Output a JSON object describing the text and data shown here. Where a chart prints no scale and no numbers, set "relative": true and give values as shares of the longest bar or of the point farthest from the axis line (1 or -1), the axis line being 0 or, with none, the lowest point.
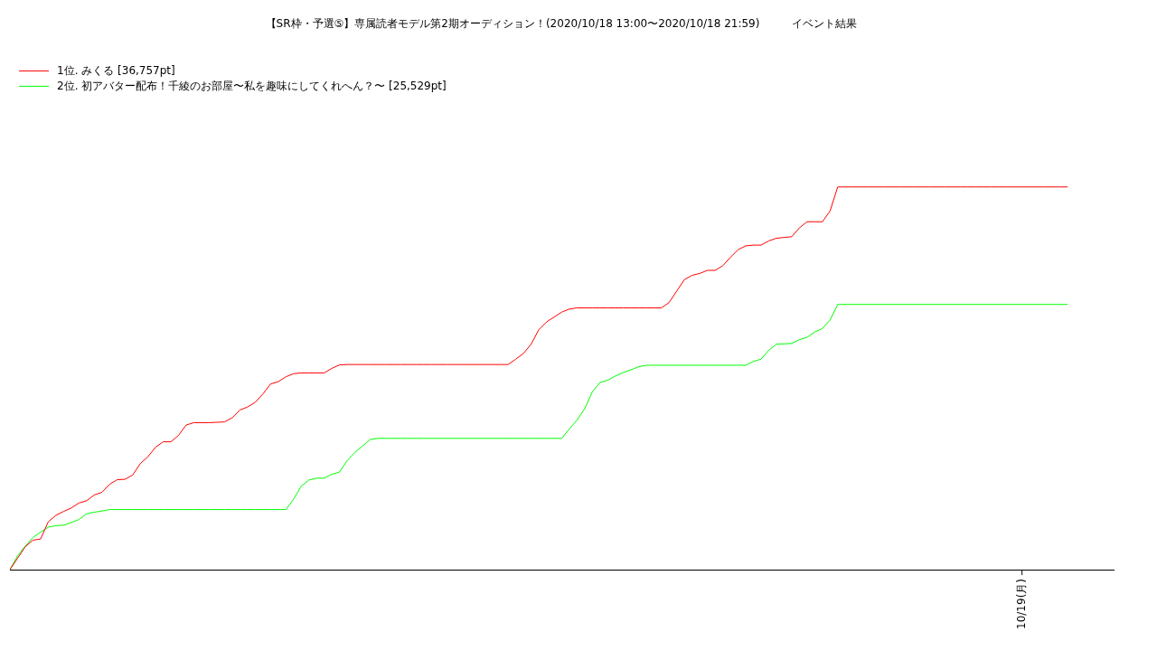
{
  "chart_data": {
    "type": "line",
    "title": "【SR枠・予選⑤】専属読者モデル第2期オーディション！(2020/10/18 13:00〜2020/10/18 21:59)　　　イベント結果",
    "relative": true,
    "categories": [
      null,
      null,
      null,
      null,
      null,
      null,
      null,
      null,
      null,
      null,
      null,
      null,
      null,
      null,
      null,
      null,
      null,
      null,
      null,
      null,
      null,
      null,
      null,
      null,
      null,
      null,
      null,
      null,
      null,
      null,
      null,
      null,
      null,
      null,
      null,
      null,
      null,
      null,
      null,
      null,
      null,
      null,
      null,
      null,
      null,
      null,
      null,
      null,
      null,
      null,
      null,
      null,
      null,
      null,
      null,
      null,
      null,
      null,
      null,
      null,
      null,
      null,
      null,
      null,
      null,
      null,
      null,
      null,
      null,
      null,
      null,
      null,
      null,
      null,
      null,
      null,
      null,
      null,
      null,
      null,
      null,
      null,
      null,
      null,
      null,
      null,
      null,
      null,
      null,
      null,
      null,
      null,
      null,
      null,
      null,
      null,
      null,
      null,
      null,
      null,
      null,
      null,
      null,
      null,
      null,
      null,
      null,
      null,
      null,
      null,
      null,
      null,
      null,
      null,
      null,
      null,
      null,
      null,
      null,
      null,
      null,
      null,
      null,
      null,
      null,
      null,
      null,
      null,
      null,
      null,
      null,
      null,
      null,
      null,
      null,
      null,
      null,
      null,
      null,
      null,
      null,
      null,
      null,
      null,
      null
    ],
    "annotations": [
      "10/19(月)"
    ],
    "legend": "top left",
    "marker": "none",
    "line_style": "solid",
    "series": [
      {
        "name": "1位. みくる [36,757pt]",
        "color": "#ff0000",
        "values": [
          0,
          0.03,
          0.06,
          0.077,
          0.08,
          0.125,
          0.142,
          0.152,
          0.161,
          0.174,
          0.18,
          0.195,
          0.202,
          0.223,
          0.235,
          0.236,
          0.247,
          0.277,
          0.295,
          0.32,
          0.334,
          0.334,
          0.351,
          0.378,
          0.384,
          0.384,
          0.384,
          0.385,
          0.386,
          0.397,
          0.417,
          0.425,
          0.437,
          0.459,
          0.485,
          0.491,
          0.504,
          0.512,
          0.514,
          0.514,
          0.514,
          0.514,
          0.526,
          0.535,
          0.536,
          0.536,
          0.536,
          0.536,
          0.536,
          0.536,
          0.536,
          0.536,
          0.536,
          0.536,
          0.536,
          0.536,
          0.536,
          0.536,
          0.536,
          0.536,
          0.536,
          0.536,
          0.536,
          0.536,
          0.536,
          0.536,
          0.55,
          0.565,
          0.589,
          0.627,
          0.647,
          0.66,
          0.673,
          0.681,
          0.684,
          0.684,
          0.684,
          0.684,
          0.684,
          0.684,
          0.684,
          0.684,
          0.684,
          0.684,
          0.684,
          0.684,
          0.698,
          0.728,
          0.758,
          0.769,
          0.774,
          0.782,
          0.782,
          0.794,
          0.816,
          0.836,
          0.846,
          0.848,
          0.848,
          0.859,
          0.866,
          0.868,
          0.87,
          0.893,
          0.909,
          0.909,
          0.909,
          0.937,
          1,
          1,
          1,
          1,
          1,
          1,
          1,
          1,
          1,
          1,
          1,
          1,
          1,
          1,
          1,
          1,
          1,
          1,
          1,
          1,
          1,
          1,
          1,
          1,
          1,
          1,
          1,
          1,
          1,
          1,
          1,
          null,
          null,
          null,
          null,
          null,
          null
        ]
      },
      {
        "name": "2位. 初アバター配布！千綾のお部屋〜私を趣味にしてくれへん？〜 [25,529pt]",
        "color": "#00ff00",
        "values": [
          0,
          0.036,
          0.061,
          0.084,
          0.098,
          0.111,
          0.115,
          0.116,
          0.123,
          0.131,
          0.146,
          0.15,
          0.153,
          0.157,
          0.157,
          0.157,
          0.157,
          0.157,
          0.157,
          0.157,
          0.157,
          0.157,
          0.157,
          0.157,
          0.157,
          0.157,
          0.157,
          0.157,
          0.157,
          0.157,
          0.157,
          0.157,
          0.157,
          0.157,
          0.157,
          0.157,
          0.157,
          0.184,
          0.218,
          0.234,
          0.239,
          0.239,
          0.249,
          0.255,
          0.285,
          0.306,
          0.323,
          0.34,
          0.343,
          0.343,
          0.343,
          0.343,
          0.343,
          0.343,
          0.343,
          0.343,
          0.343,
          0.343,
          0.343,
          0.343,
          0.343,
          0.343,
          0.343,
          0.343,
          0.343,
          0.343,
          0.343,
          0.343,
          0.343,
          0.343,
          0.343,
          0.343,
          0.343,
          0.368,
          0.391,
          0.421,
          0.465,
          0.489,
          0.495,
          0.506,
          0.515,
          0.522,
          0.53,
          0.534,
          0.534,
          0.534,
          0.534,
          0.534,
          0.534,
          0.534,
          0.534,
          0.534,
          0.534,
          0.534,
          0.534,
          0.534,
          0.534,
          0.544,
          0.55,
          0.573,
          0.589,
          0.59,
          0.591,
          0.601,
          0.607,
          0.621,
          0.63,
          0.652,
          0.693,
          0.693,
          0.693,
          0.693,
          0.693,
          0.693,
          0.693,
          0.693,
          0.693,
          0.693,
          0.693,
          0.693,
          0.693,
          0.693,
          0.693,
          0.693,
          0.693,
          0.693,
          0.693,
          0.693,
          0.693,
          0.693,
          0.693,
          0.693,
          0.693,
          0.693,
          0.693,
          0.693,
          0.693,
          0.693,
          0.693,
          null,
          null,
          null,
          null,
          null,
          null
        ]
      }
    ]
  }
}
